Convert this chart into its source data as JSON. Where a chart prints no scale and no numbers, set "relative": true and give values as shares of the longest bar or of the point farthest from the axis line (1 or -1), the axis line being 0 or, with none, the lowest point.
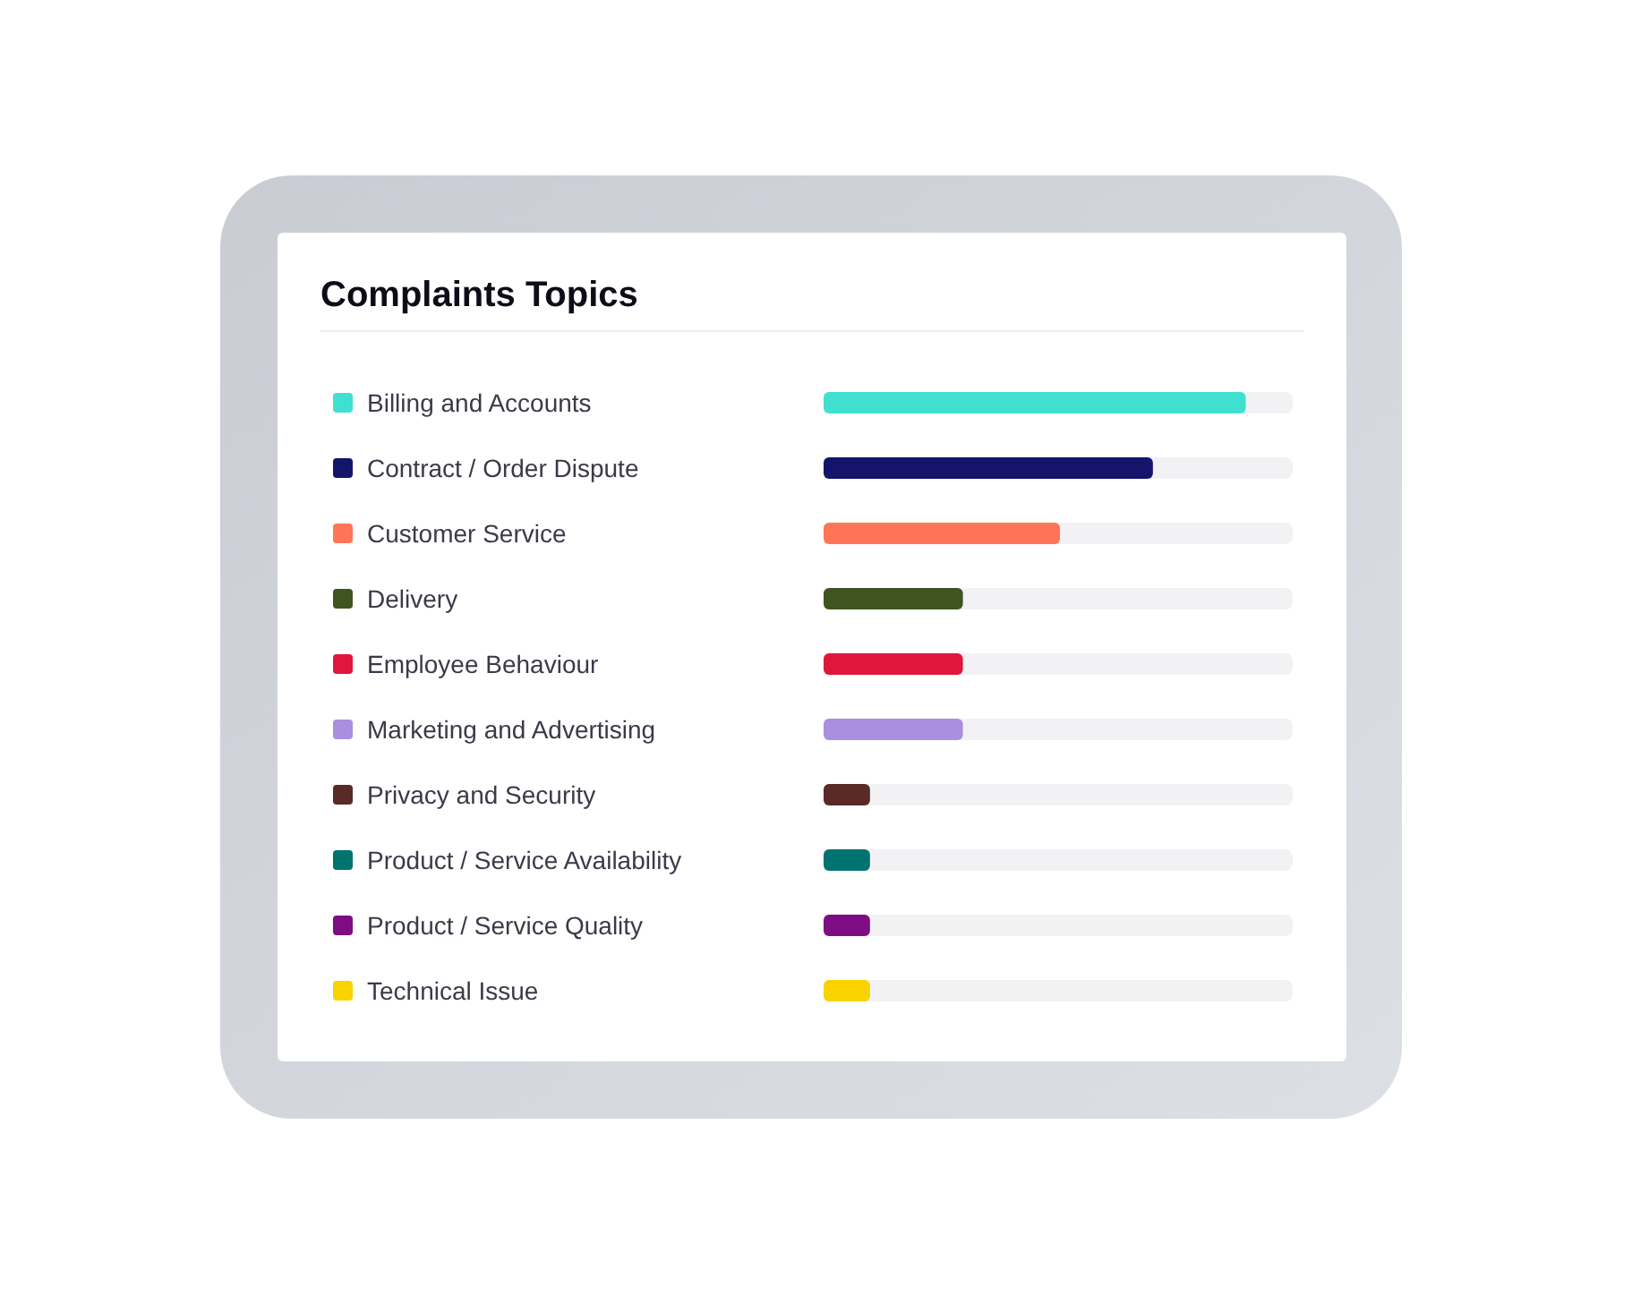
{
  "chart_data": {
    "type": "bar",
    "orientation": "horizontal",
    "relative": true,
    "title": "Complaints Topics",
    "categories": [
      "Billing and Accounts",
      "Contract / Order Dispute",
      "Customer Service",
      "Delivery",
      "Employee Behaviour",
      "Marketing and Advertising",
      "Privacy and Security",
      "Product / Service Availability",
      "Product / Service Quality",
      "Technical Issue"
    ],
    "values": [
      1,
      0.78,
      0.56,
      0.33,
      0.33,
      0.33,
      0.11,
      0.11,
      0.11,
      0.11
    ],
    "colors": [
      "#40e0d0",
      "#14146b",
      "#ff7557",
      "#3f5421",
      "#e0163c",
      "#a98fe0",
      "#5a2a27",
      "#007370",
      "#7e0d84",
      "#f8d300"
    ]
  }
}
